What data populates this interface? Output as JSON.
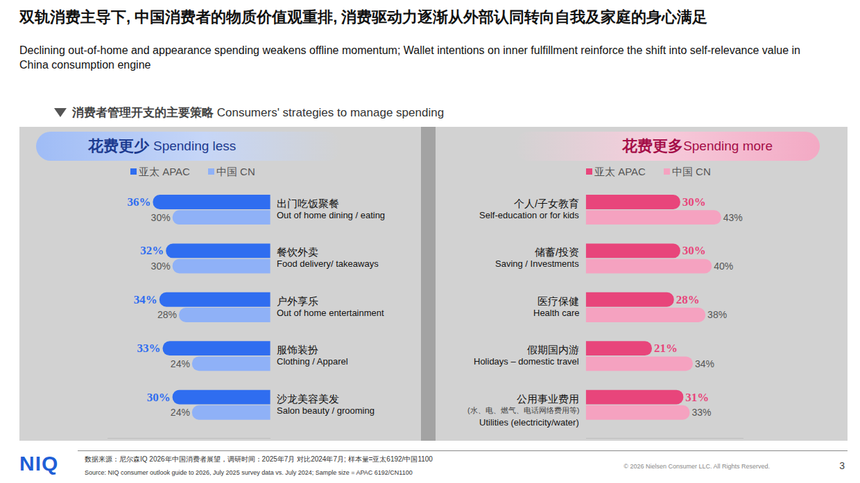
{
  "title": "双轨消费主导下, 中国消费者的物质价值观重排, 消费驱动力逐渐从外部认同转向自我及家庭的身心满足",
  "subtitle": "Declining out-of-home and appearance spending weakens offline momentum; Wallet intentions on inner fulfillment reinforce the shift into self-relevance value in China consumption engine",
  "section_title": "消费者管理开支的主要策略",
  "section_title_en": "Consumers' strategies to manage spending",
  "chart_data": [
    {
      "type": "bar",
      "orientation": "horizontal",
      "title": "花费更少",
      "subtitle": "Spending less",
      "categories": [
        "出门吃饭聚餐\nOut of home dining / eating",
        "餐饮外卖\nFood delivery/ takeaways",
        "户外享乐\nOut of home entertainment",
        "服饰装扮\nClothing / Apparel",
        "沙龙美容美发\nSalon beauty / grooming"
      ],
      "series": [
        {
          "name": "亚太 APAC",
          "color": "#2f6df0",
          "values": [
            36,
            32,
            34,
            33,
            30
          ],
          "value_labels": [
            "36%",
            "32%",
            "34%",
            "33%",
            "30%"
          ]
        },
        {
          "name": "中国 CN",
          "color": "#8fb1f7",
          "values": [
            30,
            30,
            28,
            24,
            24
          ],
          "value_labels": [
            "30%",
            "30%",
            "28%",
            "24%",
            "24%"
          ]
        }
      ],
      "xlim": [
        50,
        0
      ],
      "xticks": [],
      "data_labels": true,
      "tick_labels": false,
      "grid": false
    },
    {
      "type": "bar",
      "orientation": "horizontal",
      "title": "花费更多",
      "subtitle": "Spending more",
      "categories": [
        "个人/子女教育\nSelf-education or for kids",
        "储蓄/投资\nSaving / Investments",
        "医疗保健\nHealth care",
        "假期国内游\nHolidays – domestic travel",
        "公用事业费用\n(水、电、燃气、电话网络费用等)\nUtilities (electricity/water)"
      ],
      "series": [
        {
          "name": "亚太 APAC",
          "color": "#e8457b",
          "values": [
            30,
            30,
            28,
            21,
            31
          ],
          "value_labels": [
            "30%",
            "30%",
            "28%",
            "21%",
            "31%"
          ]
        },
        {
          "name": "中国 CN",
          "color": "#f5a2c0",
          "values": [
            43,
            40,
            38,
            34,
            33
          ],
          "value_labels": [
            "43%",
            "40%",
            "38%",
            "34%",
            "33%"
          ]
        }
      ],
      "xlim": [
        0,
        50
      ],
      "xticks": [],
      "data_labels": true,
      "tick_labels": false,
      "grid": false
    }
  ],
  "footer": {
    "logo": "NIQ",
    "source_cn": "数据来源：尼尔森IQ 2026年中国消费者展望，调研时间：2025年7月 对比2024年7月; 样本量=亚太6192/中国1100",
    "source_en": "Source: NIQ consumer outlook guide to 2026, July 2025 survey data vs. July 2024;  Sample size = APAC 6192/CN1100",
    "copyright": "© 2026 Nielsen Consumer LLC. All Rights Reserved.",
    "page": 3
  }
}
